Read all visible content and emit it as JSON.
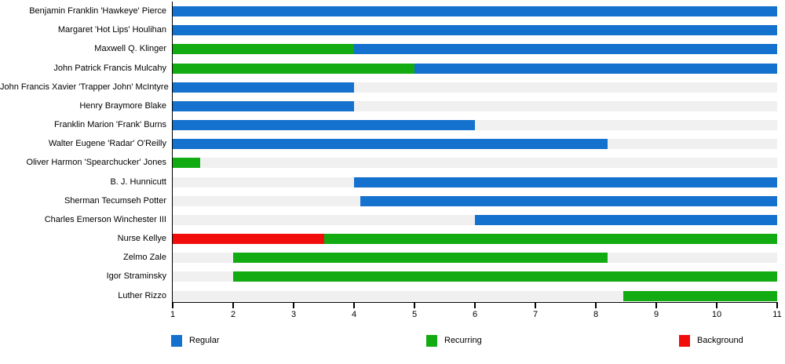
{
  "chart_data": {
    "type": "bar",
    "orientation": "horizontal",
    "title": "",
    "xlabel": "",
    "ylabel": "",
    "grid": false,
    "legend_position": "bottom",
    "track_color": "#f0f0f0",
    "x_axis": {
      "min": 1,
      "max": 11,
      "ticks": [
        1,
        2,
        3,
        4,
        5,
        6,
        7,
        8,
        9,
        10,
        11
      ]
    },
    "legend": [
      {
        "role": "regular",
        "label": "Regular",
        "color": "#1471cd"
      },
      {
        "role": "recurring",
        "label": "Recurring",
        "color": "#12ac12"
      },
      {
        "role": "background",
        "label": "Background",
        "color": "#f20d0d"
      }
    ],
    "rows": [
      {
        "label": "Benjamin Franklin 'Hawkeye' Pierce",
        "segments": [
          {
            "role": "regular",
            "start": 1,
            "end": 11
          }
        ]
      },
      {
        "label": "Margaret 'Hot Lips' Houlihan",
        "segments": [
          {
            "role": "regular",
            "start": 1,
            "end": 11
          }
        ]
      },
      {
        "label": "Maxwell Q. Klinger",
        "segments": [
          {
            "role": "recurring",
            "start": 1,
            "end": 4
          },
          {
            "role": "regular",
            "start": 4,
            "end": 11
          }
        ]
      },
      {
        "label": "John Patrick Francis Mulcahy",
        "segments": [
          {
            "role": "recurring",
            "start": 1,
            "end": 5
          },
          {
            "role": "regular",
            "start": 5,
            "end": 11
          }
        ]
      },
      {
        "label": "John Francis Xavier 'Trapper John' McIntyre",
        "segments": [
          {
            "role": "regular",
            "start": 1,
            "end": 4
          }
        ]
      },
      {
        "label": "Henry Braymore Blake",
        "segments": [
          {
            "role": "regular",
            "start": 1,
            "end": 4
          }
        ]
      },
      {
        "label": "Franklin Marion 'Frank' Burns",
        "segments": [
          {
            "role": "regular",
            "start": 1,
            "end": 6
          }
        ]
      },
      {
        "label": "Walter Eugene 'Radar' O'Reilly",
        "segments": [
          {
            "role": "regular",
            "start": 1,
            "end": 8.2
          }
        ]
      },
      {
        "label": "Oliver Harmon 'Spearchucker' Jones",
        "segments": [
          {
            "role": "recurring",
            "start": 1,
            "end": 1.45
          }
        ]
      },
      {
        "label": "B. J. Hunnicutt",
        "segments": [
          {
            "role": "regular",
            "start": 4,
            "end": 11
          }
        ]
      },
      {
        "label": "Sherman Tecumseh Potter",
        "segments": [
          {
            "role": "regular",
            "start": 4.1,
            "end": 11
          }
        ]
      },
      {
        "label": "Charles Emerson Winchester III",
        "segments": [
          {
            "role": "regular",
            "start": 6,
            "end": 11
          }
        ]
      },
      {
        "label": "Nurse Kellye",
        "segments": [
          {
            "role": "background",
            "start": 1,
            "end": 3.5
          },
          {
            "role": "recurring",
            "start": 3.5,
            "end": 11
          }
        ]
      },
      {
        "label": "Zelmo Zale",
        "segments": [
          {
            "role": "recurring",
            "start": 2,
            "end": 8.2
          }
        ]
      },
      {
        "label": "Igor Straminsky",
        "segments": [
          {
            "role": "recurring",
            "start": 2,
            "end": 11
          }
        ]
      },
      {
        "label": "Luther Rizzo",
        "segments": [
          {
            "role": "recurring",
            "start": 8.45,
            "end": 11
          }
        ]
      }
    ]
  }
}
